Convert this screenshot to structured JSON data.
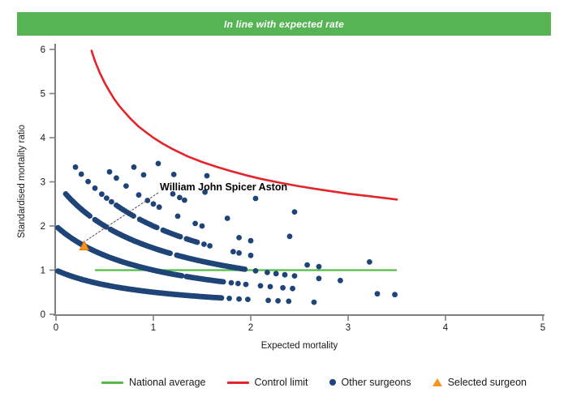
{
  "header": {
    "title": "In line with expected rate"
  },
  "colors": {
    "header_bg": "#57B455",
    "header_text": "#FFFFFF",
    "national_average": "#55BA47",
    "control_limit": "#E3242B",
    "surgeon_dot": "#1E4478",
    "selected_fill": "#F7941D",
    "selected_stroke": "#DB7512",
    "axis": "#808080",
    "tick_text": "#1A1A1A",
    "annotation_line": "#444444"
  },
  "chart_data": {
    "type": "scatter",
    "title": "In line with expected rate",
    "xlabel": "Expected mortality",
    "ylabel": "Standardised mortality ratio",
    "xlim": [
      0,
      5
    ],
    "ylim": [
      0,
      6
    ],
    "x_ticks": [
      0,
      1,
      2,
      3,
      4,
      5
    ],
    "y_ticks": [
      0,
      1,
      2,
      3,
      4,
      5,
      6
    ],
    "grid": false,
    "legend_position": "bottom",
    "national_average": {
      "label": "National average",
      "y": 1,
      "x_start": 0.4,
      "x_end": 3.5
    },
    "control_limit": {
      "label": "Control limit",
      "formula": "y = 1 + 3/sqrt(x), clipped at y=6",
      "points": [
        [
          0.365,
          5.97
        ],
        [
          0.38,
          5.87
        ],
        [
          0.4,
          5.74
        ],
        [
          0.42,
          5.63
        ],
        [
          0.45,
          5.47
        ],
        [
          0.47,
          5.38
        ],
        [
          0.5,
          5.24
        ],
        [
          0.55,
          5.05
        ],
        [
          0.6,
          4.87
        ],
        [
          0.65,
          4.72
        ],
        [
          0.7,
          4.59
        ],
        [
          0.77,
          4.42
        ],
        [
          0.85,
          4.25
        ],
        [
          0.92,
          4.13
        ],
        [
          1.0,
          4.0
        ],
        [
          1.1,
          3.86
        ],
        [
          1.2,
          3.74
        ],
        [
          1.35,
          3.58
        ],
        [
          1.5,
          3.45
        ],
        [
          1.65,
          3.34
        ],
        [
          1.8,
          3.24
        ],
        [
          1.95,
          3.15
        ],
        [
          2.1,
          3.07
        ],
        [
          2.3,
          2.98
        ],
        [
          2.5,
          2.9
        ],
        [
          2.7,
          2.83
        ],
        [
          3.0,
          2.73
        ],
        [
          3.2,
          2.68
        ],
        [
          3.5,
          2.6
        ]
      ]
    },
    "selected_surgeon": {
      "label": "Selected surgeon",
      "name": "William John Spicer Aston",
      "x": 0.29,
      "y": 1.55
    },
    "other_surgeons": {
      "label": "Other surgeons",
      "note": "surgeon points lie on SMR curves y = k/(x+1); segments are [x_start, x_end, step] of dense runs, sparse are isolated x values",
      "bands": [
        {
          "k": 1,
          "segments": [
            [
              0.02,
              1.7,
              0.012
            ]
          ],
          "sparse": [
            1.78,
            1.88,
            1.97,
            2.18,
            2.28,
            2.39,
            2.65
          ]
        },
        {
          "k": 2,
          "segments": [
            [
              0.02,
              1.3,
              0.012
            ],
            [
              1.34,
              1.72,
              0.014
            ]
          ],
          "sparse": [
            1.8,
            1.87,
            1.95,
            2.1,
            2.2,
            2.33,
            2.43,
            3.3,
            3.48
          ]
        },
        {
          "k": 3,
          "segments": [
            [
              0.1,
              0.35,
              0.013
            ],
            [
              0.4,
              0.52,
              0.013
            ],
            [
              0.56,
              1.18,
              0.012
            ],
            [
              1.24,
              1.95,
              0.014
            ]
          ],
          "sparse": [
            2.05,
            2.17,
            2.26,
            2.35,
            2.45,
            2.7,
            2.92
          ]
        },
        {
          "k": 4,
          "segments": [
            [
              0.62,
              0.8,
              0.022
            ],
            [
              0.86,
              1.05,
              0.022
            ],
            [
              1.1,
              1.28,
              0.022
            ],
            [
              1.34,
              1.45,
              0.022
            ]
          ],
          "sparse": [
            0.2,
            0.26,
            0.33,
            0.4,
            0.47,
            0.52,
            0.57,
            1.52,
            1.58,
            1.82,
            1.88,
            2.0,
            2.58,
            2.7
          ]
        },
        {
          "k": 5,
          "segments": [],
          "sparse": [
            0.55,
            0.62,
            0.72,
            0.85,
            0.94,
            1.0,
            1.06,
            1.25,
            1.43,
            1.5,
            1.88,
            2.0,
            3.22
          ]
        },
        {
          "k": 6,
          "segments": [],
          "sparse": [
            0.8,
            0.9,
            1.2,
            1.27,
            1.32,
            1.76,
            2.4
          ]
        },
        {
          "k": 7,
          "segments": [],
          "sparse": [
            1.05,
            1.21,
            1.53
          ]
        },
        {
          "k": 8,
          "segments": [],
          "sparse": [
            1.55,
            2.05,
            2.45
          ]
        }
      ]
    },
    "legend": [
      {
        "swatch": "line-green",
        "label": "National average"
      },
      {
        "swatch": "line-red",
        "label": "Control limit"
      },
      {
        "swatch": "dot-blue",
        "label": "Other surgeons"
      },
      {
        "swatch": "triangle-orange",
        "label": "Selected surgeon"
      }
    ]
  }
}
